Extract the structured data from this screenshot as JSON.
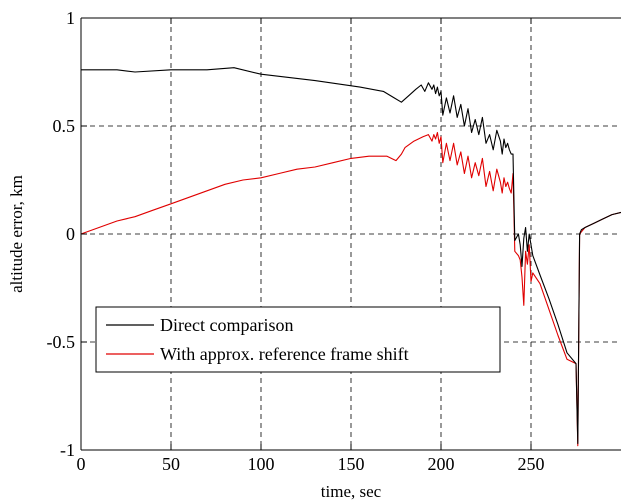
{
  "chart_data": {
    "type": "line",
    "title": "",
    "xlabel": "time, sec",
    "ylabel": "altitude error, km",
    "xlim": [
      0,
      300
    ],
    "ylim": [
      -1,
      1
    ],
    "grid": true,
    "legend_position": "bottom-left",
    "x_ticks": [
      0,
      50,
      100,
      150,
      200,
      250
    ],
    "x_tick_labels": [
      "0",
      "50",
      "100",
      "150",
      "200",
      "250"
    ],
    "y_ticks": [
      1,
      0.5,
      0,
      -0.5,
      -1
    ],
    "y_tick_labels": [
      "1",
      "0.5",
      "0",
      "-0.5",
      "-1"
    ],
    "series": [
      {
        "name": "Direct comparison",
        "color": "#000000",
        "x": [
          0,
          20,
          30,
          50,
          70,
          85,
          100,
          130,
          155,
          168,
          174,
          178,
          182,
          186,
          189,
          191,
          193,
          195,
          196,
          197,
          198,
          199,
          200,
          201,
          203,
          205,
          207,
          209,
          211,
          213,
          215,
          217,
          219,
          221,
          223,
          225,
          227,
          229,
          231,
          233,
          234,
          235,
          236,
          237,
          238,
          239,
          240,
          241,
          243,
          244,
          245,
          246,
          247,
          248,
          249,
          250,
          251,
          255,
          260,
          265,
          270,
          275,
          276,
          277,
          278,
          280,
          285,
          290,
          295,
          300
        ],
        "y": [
          0.76,
          0.76,
          0.75,
          0.76,
          0.76,
          0.77,
          0.74,
          0.71,
          0.68,
          0.66,
          0.63,
          0.61,
          0.64,
          0.67,
          0.69,
          0.66,
          0.7,
          0.67,
          0.69,
          0.65,
          0.68,
          0.64,
          0.66,
          0.55,
          0.63,
          0.56,
          0.64,
          0.54,
          0.6,
          0.5,
          0.58,
          0.47,
          0.53,
          0.46,
          0.54,
          0.42,
          0.46,
          0.39,
          0.48,
          0.43,
          0.37,
          0.44,
          0.4,
          0.42,
          0.39,
          0.37,
          0.37,
          -0.03,
          0.0,
          -0.05,
          -0.15,
          -0.02,
          0.03,
          -0.08,
          0.0,
          -0.05,
          -0.1,
          -0.19,
          -0.3,
          -0.42,
          -0.55,
          -0.6,
          -0.97,
          0.0,
          0.02,
          0.03,
          0.05,
          0.07,
          0.09,
          0.1
        ]
      },
      {
        "name": "With approx. reference frame shift",
        "color": "#e00000",
        "x": [
          0,
          10,
          20,
          30,
          40,
          50,
          60,
          70,
          80,
          90,
          100,
          110,
          120,
          130,
          140,
          150,
          160,
          170,
          175,
          178,
          180,
          185,
          190,
          193,
          195,
          196,
          197,
          198,
          199,
          200,
          201,
          203,
          205,
          207,
          209,
          211,
          213,
          215,
          217,
          219,
          221,
          223,
          225,
          227,
          229,
          231,
          233,
          234,
          235,
          236,
          237,
          238,
          239,
          240,
          241,
          243,
          244,
          245,
          246,
          247,
          248,
          249,
          250,
          251,
          255,
          260,
          265,
          270,
          275,
          276,
          277,
          278,
          280,
          285,
          290,
          295,
          300
        ],
        "y": [
          0.0,
          0.03,
          0.06,
          0.08,
          0.11,
          0.14,
          0.17,
          0.2,
          0.23,
          0.25,
          0.26,
          0.28,
          0.3,
          0.31,
          0.33,
          0.35,
          0.36,
          0.36,
          0.34,
          0.37,
          0.4,
          0.43,
          0.45,
          0.46,
          0.43,
          0.46,
          0.44,
          0.47,
          0.42,
          0.45,
          0.33,
          0.42,
          0.34,
          0.42,
          0.32,
          0.38,
          0.28,
          0.36,
          0.26,
          0.33,
          0.27,
          0.35,
          0.22,
          0.29,
          0.2,
          0.3,
          0.24,
          0.19,
          0.26,
          0.22,
          0.24,
          0.21,
          0.19,
          0.28,
          -0.08,
          -0.1,
          -0.12,
          -0.2,
          -0.33,
          -0.08,
          -0.14,
          -0.05,
          -0.22,
          -0.18,
          -0.23,
          -0.35,
          -0.47,
          -0.58,
          -0.6,
          -0.98,
          0.0,
          0.01,
          0.03,
          0.05,
          0.07,
          0.09,
          0.1
        ]
      }
    ]
  }
}
